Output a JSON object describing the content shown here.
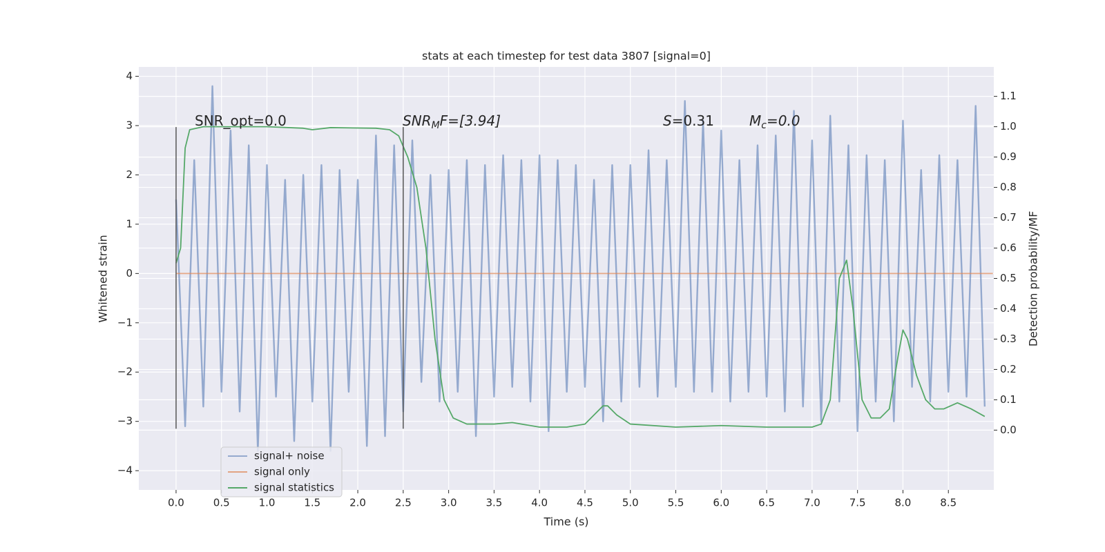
{
  "chart_data": {
    "type": "line",
    "title": "stats at each timestep for test data 3807 [signal=0]",
    "xlabel": "Time (s)",
    "ylabel": "Whitened strain",
    "y2label": "Detection probability/MF",
    "xlim": [
      -0.41,
      9.0
    ],
    "ylim": [
      -4.39,
      4.19
    ],
    "y2lim": [
      -0.197,
      1.197
    ],
    "grid": true,
    "legend": "lower left",
    "xticks": [
      {
        "value": 0,
        "label": "0.0"
      },
      {
        "value": 0.5,
        "label": "0.5"
      },
      {
        "value": 1,
        "label": "1.0"
      },
      {
        "value": 1.5,
        "label": "1.5"
      },
      {
        "value": 2,
        "label": "2.0"
      },
      {
        "value": 2.5,
        "label": "2.5"
      },
      {
        "value": 3,
        "label": "3.0"
      },
      {
        "value": 3.5,
        "label": "3.5"
      },
      {
        "value": 4,
        "label": "4.0"
      },
      {
        "value": 4.5,
        "label": "4.5"
      },
      {
        "value": 5,
        "label": "5.0"
      },
      {
        "value": 5.5,
        "label": "5.5"
      },
      {
        "value": 6,
        "label": "6.0"
      },
      {
        "value": 6.5,
        "label": "6.5"
      },
      {
        "value": 7,
        "label": "7.0"
      },
      {
        "value": 7.5,
        "label": "7.5"
      },
      {
        "value": 8,
        "label": "8.0"
      },
      {
        "value": 8.5,
        "label": "8.5"
      }
    ],
    "yticks": [
      {
        "value": -4,
        "label": "−4"
      },
      {
        "value": -3,
        "label": "−3"
      },
      {
        "value": -2,
        "label": "−2"
      },
      {
        "value": -1,
        "label": "−1"
      },
      0,
      1,
      2,
      3,
      4
    ],
    "y2ticks": [
      {
        "value": 0,
        "label": "0.0"
      },
      {
        "value": 0.1,
        "label": "0.1"
      },
      {
        "value": 0.2,
        "label": "0.2"
      },
      {
        "value": 0.3,
        "label": "0.3"
      },
      {
        "value": 0.4,
        "label": "0.4"
      },
      {
        "value": 0.5,
        "label": "0.5"
      },
      {
        "value": 0.6,
        "label": "0.6"
      },
      {
        "value": 0.7,
        "label": "0.7"
      },
      {
        "value": 0.8,
        "label": "0.8"
      },
      {
        "value": 0.9,
        "label": "0.9"
      },
      {
        "value": 1,
        "label": "1.0"
      },
      {
        "value": 1.1,
        "label": "1.1"
      }
    ],
    "series": [
      {
        "name": "signal+ noise",
        "color": "#4c72b0",
        "x": [
          0,
          0.1,
          0.2,
          0.3,
          0.4,
          0.5,
          0.6,
          0.7,
          0.8,
          0.9,
          1,
          1.1,
          1.2,
          1.3,
          1.4,
          1.5,
          1.6,
          1.7,
          1.8,
          1.9,
          2,
          2.1,
          2.2,
          2.3,
          2.4,
          2.5,
          2.6,
          2.7,
          2.8,
          2.9,
          3,
          3.1,
          3.2,
          3.3,
          3.4,
          3.5,
          3.6,
          3.7,
          3.8,
          3.9,
          4,
          4.1,
          4.2,
          4.3,
          4.4,
          4.5,
          4.6,
          4.7,
          4.8,
          4.9,
          5,
          5.1,
          5.2,
          5.3,
          5.4,
          5.5,
          5.6,
          5.7,
          5.8,
          5.9,
          6,
          6.1,
          6.2,
          6.3,
          6.4,
          6.5,
          6.6,
          6.7,
          6.8,
          6.9,
          7,
          7.1,
          7.2,
          7.3,
          7.4,
          7.5,
          7.6,
          7.7,
          7.8,
          7.9,
          8,
          8.1,
          8.2,
          8.3,
          8.4,
          8.5,
          8.6,
          8.7,
          8.8,
          8.9
        ],
        "values": [
          1.5,
          -3.1,
          2.3,
          -2.7,
          3.8,
          -2.4,
          2.9,
          -2.8,
          2.6,
          -3.6,
          2.2,
          -2.5,
          1.9,
          -3.4,
          2.0,
          -2.6,
          2.2,
          -3.6,
          2.1,
          -2.4,
          1.9,
          -3.5,
          2.8,
          -3.3,
          2.6,
          -2.8,
          2.7,
          -2.2,
          2.0,
          -2.6,
          2.1,
          -2.4,
          2.3,
          -3.3,
          2.2,
          -2.5,
          2.4,
          -2.3,
          2.3,
          -2.6,
          2.4,
          -3.2,
          2.3,
          -2.4,
          2.2,
          -2.3,
          1.9,
          -3.0,
          2.2,
          -2.6,
          2.2,
          -2.3,
          2.5,
          -2.5,
          2.3,
          -2.3,
          3.5,
          -2.4,
          3.1,
          -2.4,
          2.9,
          -2.6,
          2.3,
          -2.4,
          2.6,
          -2.5,
          2.8,
          -2.8,
          3.3,
          -2.7,
          2.7,
          -3.0,
          3.2,
          -2.6,
          2.6,
          -3.2,
          2.4,
          -2.6,
          2.3,
          -3.0,
          3.1,
          -2.3,
          2.1,
          -2.6,
          2.4,
          -2.4,
          2.3,
          -2.5,
          3.4,
          -2.7
        ]
      },
      {
        "name": "signal only",
        "color": "#dd8452",
        "x": [
          0,
          8.99
        ],
        "values": [
          0,
          0
        ]
      },
      {
        "name": "signal statistics",
        "color": "#55a868",
        "axis": "y2",
        "x": [
          0,
          0.05,
          0.1,
          0.15,
          0.3,
          1.0,
          1.4,
          1.5,
          1.7,
          2.2,
          2.35,
          2.45,
          2.55,
          2.65,
          2.75,
          2.85,
          2.95,
          3.05,
          3.2,
          3.5,
          3.7,
          4.0,
          4.3,
          4.5,
          4.6,
          4.7,
          4.75,
          4.85,
          5.0,
          5.5,
          6.0,
          6.5,
          7.0,
          7.1,
          7.2,
          7.3,
          7.38,
          7.45,
          7.55,
          7.65,
          7.75,
          7.85,
          7.95,
          8.0,
          8.05,
          8.15,
          8.25,
          8.35,
          8.45,
          8.6,
          8.75,
          8.9
        ],
        "values": [
          0.55,
          0.6,
          0.93,
          0.99,
          1.0,
          1.0,
          0.995,
          0.99,
          0.997,
          0.995,
          0.99,
          0.97,
          0.9,
          0.8,
          0.6,
          0.3,
          0.1,
          0.04,
          0.02,
          0.02,
          0.025,
          0.01,
          0.01,
          0.02,
          0.05,
          0.08,
          0.08,
          0.05,
          0.02,
          0.01,
          0.015,
          0.01,
          0.01,
          0.02,
          0.1,
          0.5,
          0.56,
          0.4,
          0.1,
          0.04,
          0.04,
          0.07,
          0.25,
          0.33,
          0.3,
          0.18,
          0.1,
          0.07,
          0.07,
          0.09,
          0.07,
          0.045
        ]
      }
    ],
    "vlines": [
      {
        "x": 0,
        "ymin": -3.15,
        "ymax": 2.97
      },
      {
        "x": 2.5,
        "ymin": -3.15,
        "ymax": 2.97
      }
    ],
    "annotations": [
      {
        "text": "SNR_opt=0.0"
      },
      {
        "main": "SNR",
        "sub": "M",
        "rest": "F=[3.94]"
      },
      {
        "main": "S",
        "rest": "=0.31"
      },
      {
        "main": "M",
        "sub": "c",
        "rest": "=0.0"
      }
    ]
  }
}
